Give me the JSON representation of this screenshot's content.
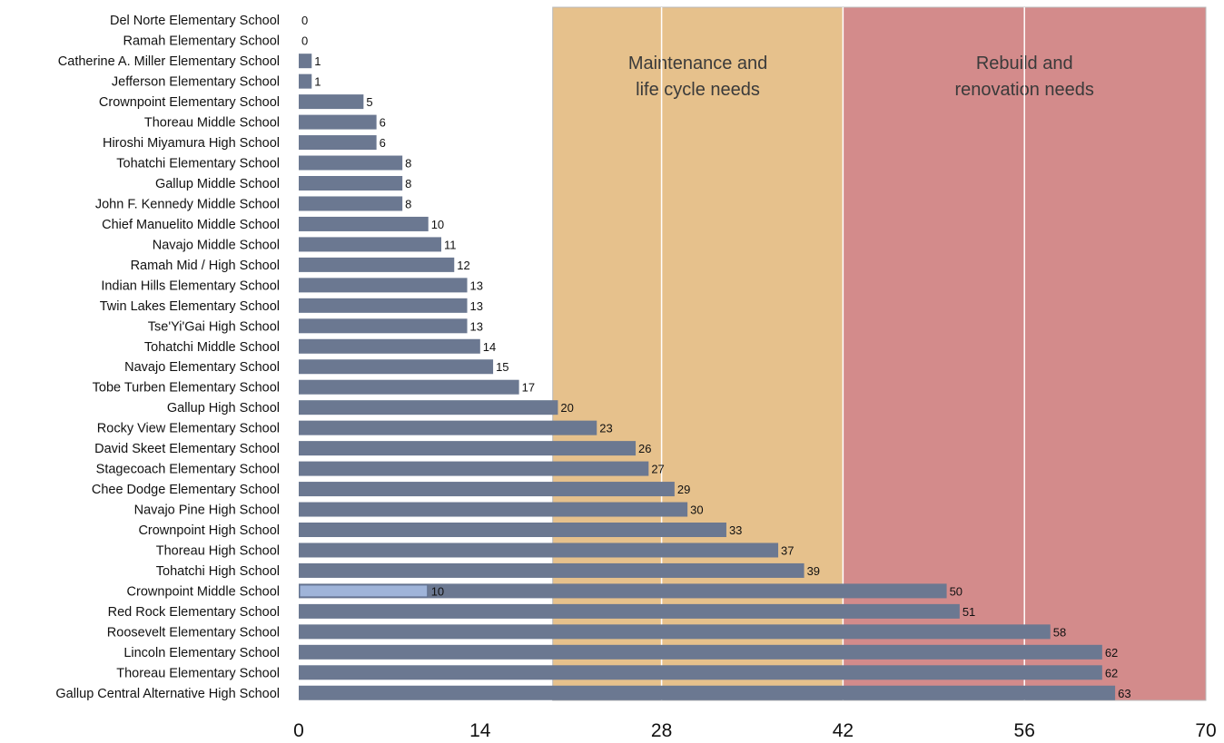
{
  "chart_data": {
    "type": "bar",
    "orientation": "horizontal",
    "categories": [
      "Del Norte Elementary School",
      "Ramah Elementary School",
      "Catherine A. Miller Elementary School",
      "Jefferson Elementary School",
      "Crownpoint Elementary School",
      "Thoreau Middle School",
      "Hiroshi Miyamura High School",
      "Tohatchi Elementary School",
      "Gallup Middle School",
      "John F. Kennedy Middle School",
      "Chief Manuelito Middle School",
      "Navajo Middle School",
      "Ramah Mid / High School",
      "Indian Hills Elementary School",
      "Twin Lakes Elementary School",
      "Tse'Yi'Gai High School",
      "Tohatchi Middle School",
      "Navajo Elementary School",
      "Tobe Turben Elementary School",
      "Gallup High School",
      "Rocky View Elementary School",
      "David Skeet Elementary School",
      "Stagecoach Elementary School",
      "Chee Dodge Elementary School",
      "Navajo Pine High School",
      "Crownpoint High School",
      "Thoreau High School",
      "Tohatchi High School",
      "Crownpoint Middle School",
      "Red Rock Elementary School",
      "Roosevelt Elementary School",
      "Lincoln Elementary School",
      "Thoreau Elementary School",
      "Gallup Central Alternative High School"
    ],
    "values": [
      0,
      0,
      1,
      1,
      5,
      6,
      6,
      8,
      8,
      8,
      10,
      11,
      12,
      13,
      13,
      13,
      14,
      15,
      17,
      20,
      23,
      26,
      27,
      29,
      30,
      33,
      37,
      39,
      50,
      51,
      58,
      62,
      62,
      63
    ],
    "secondary_values": [
      null,
      null,
      null,
      null,
      null,
      null,
      null,
      null,
      null,
      null,
      null,
      null,
      null,
      null,
      null,
      null,
      null,
      null,
      null,
      null,
      null,
      null,
      null,
      null,
      null,
      null,
      null,
      null,
      10,
      null,
      null,
      null,
      null,
      null
    ],
    "xlim": [
      0,
      70
    ],
    "xticks": [
      0,
      14,
      28,
      42,
      56,
      70
    ],
    "grid": "vertical",
    "zones": [
      {
        "label": "Maintenance and life cycle needs",
        "lines": [
          "Maintenance and",
          "life cycle needs"
        ],
        "from": 19.6,
        "to": 42,
        "color": "#e6c18c"
      },
      {
        "label": "Rebuild and renovation needs",
        "lines": [
          "Rebuild and",
          "renovation needs"
        ],
        "from": 42,
        "to": 70,
        "color": "#d38b8b"
      }
    ],
    "colors": {
      "bar": "#6b7891",
      "secondary_bar": "#9fb4d9",
      "secondary_border": "#5f6f8f"
    }
  }
}
